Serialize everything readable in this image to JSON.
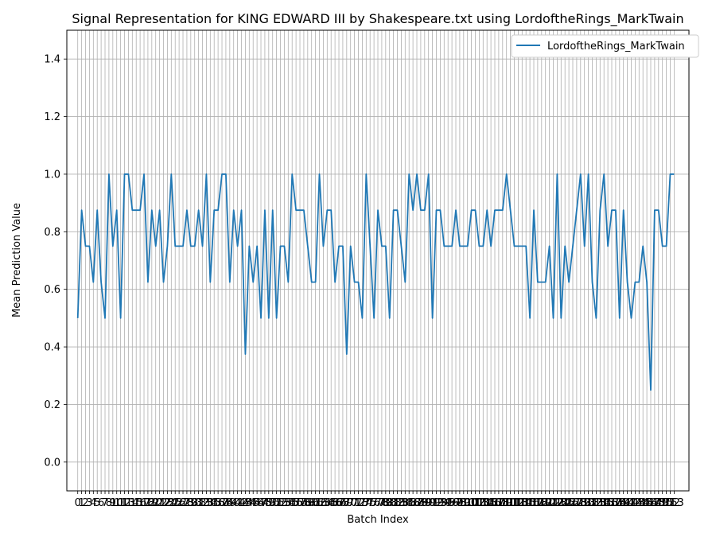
{
  "chart_data": {
    "type": "line",
    "title": "Signal Representation for KING EDWARD III by Shakespeare.txt using LordoftheRings_MarkTwain",
    "xlabel": "Batch Index",
    "ylabel": "Mean Prediction Value",
    "ylim": [
      -0.1,
      1.5
    ],
    "yticks": [
      0.0,
      0.2,
      0.4,
      0.6,
      0.8,
      1.0,
      1.2,
      1.4
    ],
    "xlim": [
      -2.8,
      156.8
    ],
    "grid": true,
    "legend_position": "top-right",
    "series": [
      {
        "name": "LordoftheRings_MarkTwain",
        "color": "#1f77b4",
        "values": [
          0.5,
          0.875,
          0.75,
          0.75,
          0.625,
          0.875,
          0.625,
          0.5,
          1.0,
          0.75,
          0.875,
          0.5,
          1.0,
          1.0,
          0.875,
          0.875,
          0.875,
          1.0,
          0.625,
          0.875,
          0.75,
          0.875,
          0.625,
          0.75,
          1.0,
          0.75,
          0.75,
          0.75,
          0.875,
          0.75,
          0.75,
          0.875,
          0.75,
          1.0,
          0.625,
          0.875,
          0.875,
          1.0,
          1.0,
          0.625,
          0.875,
          0.75,
          0.875,
          0.375,
          0.75,
          0.625,
          0.75,
          0.5,
          0.875,
          0.5,
          0.875,
          0.5,
          0.75,
          0.75,
          0.625,
          1.0,
          0.875,
          0.875,
          0.875,
          0.75,
          0.625,
          0.625,
          1.0,
          0.75,
          0.875,
          0.875,
          0.625,
          0.75,
          0.75,
          0.375,
          0.75,
          0.625,
          0.625,
          0.5,
          1.0,
          0.75,
          0.5,
          0.875,
          0.75,
          0.75,
          0.5,
          0.875,
          0.875,
          0.75,
          0.625,
          1.0,
          0.875,
          1.0,
          0.875,
          0.875,
          1.0,
          0.5,
          0.875,
          0.875,
          0.75,
          0.75,
          0.75,
          0.875,
          0.75,
          0.75,
          0.75,
          0.875,
          0.875,
          0.75,
          0.75,
          0.875,
          0.75,
          0.875,
          0.875,
          0.875,
          1.0,
          0.875,
          0.75,
          0.75,
          0.75,
          0.75,
          0.5,
          0.875,
          0.625,
          0.625,
          0.625,
          0.75,
          0.5,
          1.0,
          0.5,
          0.75,
          0.625,
          0.75,
          0.875,
          1.0,
          0.75,
          1.0,
          0.625,
          0.5,
          0.875,
          1.0,
          0.75,
          0.875,
          0.875,
          0.5,
          0.875,
          0.625,
          0.5,
          0.625,
          0.625,
          0.75,
          0.625,
          0.25,
          0.875,
          0.875,
          0.75,
          0.75,
          1.0,
          1.0
        ]
      }
    ]
  }
}
